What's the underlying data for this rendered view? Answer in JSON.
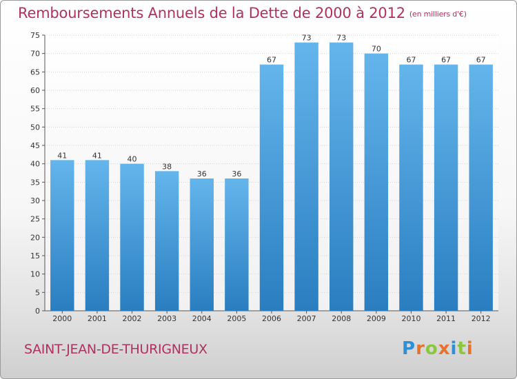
{
  "header": {
    "title": "Remboursements Annuels de la Dette de 2000 à 2012",
    "unit": "(en milliers d'€)"
  },
  "footer": {
    "commune": "SAINT-JEAN-DE-THURIGNEUX",
    "brand": "Proxiti"
  },
  "colors": {
    "title": "#b03060",
    "bar_top": "#64b5ec",
    "bar_bottom": "#2a7ec0",
    "brand_letters": [
      "#2e8fd6",
      "#e8712b",
      "#8cc63f",
      "#e8712b",
      "#2e8fd6",
      "#8cc63f",
      "#e8712b"
    ]
  },
  "chart_data": {
    "type": "bar",
    "title": "Remboursements Annuels de la Dette de 2000 à 2012",
    "subtitle": "(en milliers d'€)",
    "categories": [
      "2000",
      "2001",
      "2002",
      "2003",
      "2004",
      "2005",
      "2006",
      "2007",
      "2008",
      "2009",
      "2010",
      "2011",
      "2012"
    ],
    "values": [
      41,
      41,
      40,
      38,
      36,
      36,
      67,
      73,
      73,
      70,
      67,
      67,
      67
    ],
    "ylim": [
      0,
      75
    ],
    "yticks": [
      0,
      5,
      10,
      15,
      20,
      25,
      30,
      35,
      40,
      45,
      50,
      55,
      60,
      65,
      70,
      75
    ],
    "grid": true,
    "data_labels": true
  }
}
